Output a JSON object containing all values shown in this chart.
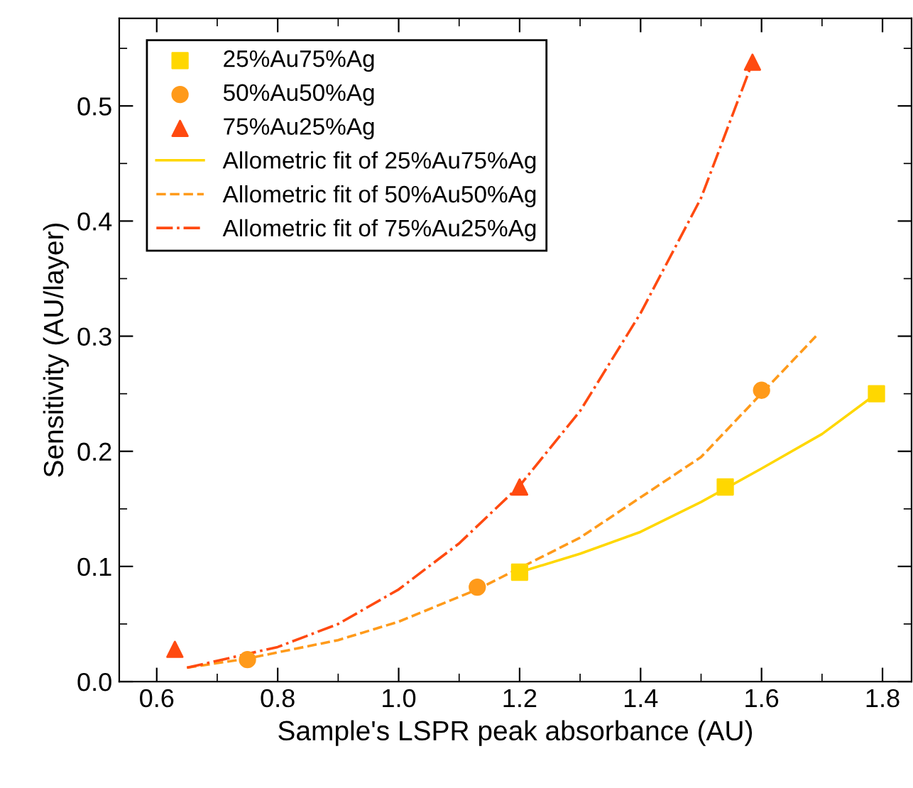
{
  "chart_data": {
    "type": "scatter",
    "xlabel": "Sample's LSPR peak absorbance (AU)",
    "ylabel": "Sensitivity (AU/layer)",
    "xlim": [
      0.538,
      1.848
    ],
    "ylim": [
      0,
      0.576
    ],
    "xticks": [
      0.6,
      0.8,
      {
        "value": 1.0,
        "label": "1.0"
      },
      1.2,
      1.4,
      1.6,
      1.8
    ],
    "yticks": [
      {
        "value": 0.0,
        "label": "0.0"
      },
      0.1,
      0.2,
      0.3,
      0.4,
      0.5
    ],
    "grid": false,
    "legend": "top left",
    "series": [
      {
        "name": "25%Au75%Ag",
        "marker": "square",
        "color": "#ffd700",
        "x": [
          1.2,
          1.54,
          1.79
        ],
        "values": [
          0.095,
          0.169,
          0.25
        ]
      },
      {
        "name": "50%Au50%Ag",
        "marker": "circle",
        "color": "#ff9a1a",
        "x": [
          0.75,
          1.13,
          1.6
        ],
        "values": [
          0.019,
          0.082,
          0.253
        ]
      },
      {
        "name": "75%Au25%Ag",
        "marker": "triangle",
        "color": "#ff4a10",
        "x": [
          0.63,
          1.2,
          1.585
        ],
        "values": [
          0.028,
          0.169,
          0.538
        ]
      },
      {
        "name": "Allometric fit of 25%Au75%Ag",
        "type": "line",
        "line_style": "solid",
        "color": "#ffd700",
        "x": [
          1.2,
          1.3,
          1.4,
          1.5,
          1.6,
          1.7,
          1.79
        ],
        "values": [
          0.095,
          0.111,
          0.13,
          0.156,
          0.185,
          0.215,
          0.25
        ]
      },
      {
        "name": "Allometric fit of 50%Au50%Ag",
        "type": "line",
        "line_style": "dashed",
        "color": "#ff9a1a",
        "x": [
          0.65,
          0.75,
          0.9,
          1.0,
          1.13,
          1.3,
          1.5,
          1.69
        ],
        "values": [
          0.012,
          0.02,
          0.036,
          0.052,
          0.08,
          0.125,
          0.195,
          0.3
        ]
      },
      {
        "name": "Allometric fit of 75%Au25%Ag",
        "type": "line",
        "line_style": "dashdot",
        "color": "#ff4a10",
        "x": [
          0.65,
          0.8,
          0.9,
          1.0,
          1.1,
          1.2,
          1.3,
          1.4,
          1.5,
          1.585
        ],
        "values": [
          0.012,
          0.03,
          0.05,
          0.08,
          0.12,
          0.17,
          0.235,
          0.32,
          0.42,
          0.538
        ]
      }
    ]
  }
}
